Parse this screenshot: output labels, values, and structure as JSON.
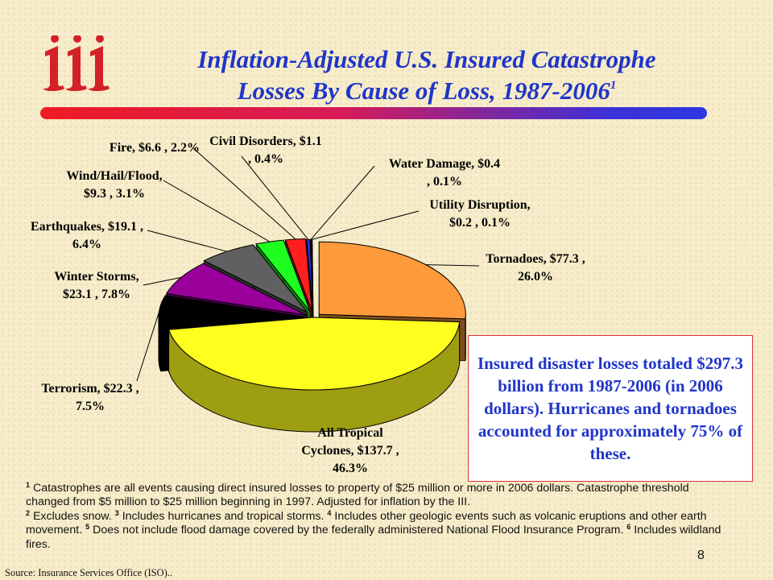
{
  "title": {
    "line1": "Inflation-Adjusted U.S. Insured Catastrophe",
    "line2": "Losses By Cause of Loss, 1987-2006",
    "line2_superscript": "1"
  },
  "logo": {
    "text": "iii",
    "color": "#d42027"
  },
  "callout": {
    "text": "Insured disaster losses totaled $297.3 billion from 1987-2006 (in 2006 dollars). Hurricanes and tornadoes accounted for approximately 75% of these."
  },
  "footnotes": [
    {
      "num": "1",
      "text": "Catastrophes are all events causing direct insured losses to property of $25 million or more in 2006 dollars. Catastrophe threshold changed from $5 million to $25 million beginning in 1997. Adjusted for inflation by the III."
    },
    {
      "num": "2",
      "text": "Excludes snow."
    },
    {
      "num": "3",
      "text": "Includes hurricanes and tropical storms."
    },
    {
      "num": "4",
      "text": "Includes other geologic events such as volcanic eruptions and other earth movement."
    },
    {
      "num": "5",
      "text": "Does not include flood damage covered by the federally administered National Flood Insurance Program."
    },
    {
      "num": "6",
      "text": "Includes wildland fires."
    }
  ],
  "page_number": "8",
  "source": "Source: Insurance Services Office (ISO)..",
  "chart_data": {
    "type": "pie",
    "style": "3d-exploded",
    "units": "$ billions (2006 dollars), percent of total",
    "total": 297.3,
    "slices": [
      {
        "name": "Tornadoes",
        "value": 77.3,
        "percent": 26.0,
        "color": "#ff9a3c",
        "label_lines": [
          "Tornadoes, $77.3 ,",
          "26.0%"
        ]
      },
      {
        "name": "All Tropical Cyclones",
        "value": 137.7,
        "percent": 46.3,
        "color": "#ffff1f",
        "label_lines": [
          "All Tropical",
          "Cyclones, $137.7 ,",
          "46.3%"
        ]
      },
      {
        "name": "Terrorism",
        "value": 22.3,
        "percent": 7.5,
        "color": "#000000",
        "label_lines": [
          "Terrorism, $22.3 ,",
          "7.5%"
        ]
      },
      {
        "name": "Winter Storms",
        "value": 23.1,
        "percent": 7.8,
        "color": "#990099",
        "label_lines": [
          "Winter Storms,",
          "$23.1 , 7.8%"
        ]
      },
      {
        "name": "Earthquakes",
        "value": 19.1,
        "percent": 6.4,
        "color": "#606060",
        "label_lines": [
          "Earthquakes, $19.1 ,",
          "6.4%"
        ]
      },
      {
        "name": "Wind/Hail/Flood",
        "value": 9.3,
        "percent": 3.1,
        "color": "#1fff1f",
        "label_lines": [
          "Wind/Hail/Flood,",
          "$9.3 , 3.1%"
        ]
      },
      {
        "name": "Fire",
        "value": 6.6,
        "percent": 2.2,
        "color": "#ff1f1f",
        "label_lines": [
          "Fire, $6.6 , 2.2%"
        ]
      },
      {
        "name": "Civil Disorders",
        "value": 1.1,
        "percent": 0.4,
        "color": "#2b2bd9",
        "label_lines": [
          "Civil Disorders, $1.1",
          ", 0.4%"
        ]
      },
      {
        "name": "Water Damage",
        "value": 0.4,
        "percent": 0.1,
        "color": "#9ab0ff",
        "label_lines": [
          "Water Damage, $0.4",
          ", 0.1%"
        ]
      },
      {
        "name": "Utility Disruption",
        "value": 0.2,
        "percent": 0.1,
        "color": "#ffffff",
        "label_lines": [
          "Utility Disruption,",
          "$0.2 , 0.1%"
        ]
      }
    ]
  }
}
